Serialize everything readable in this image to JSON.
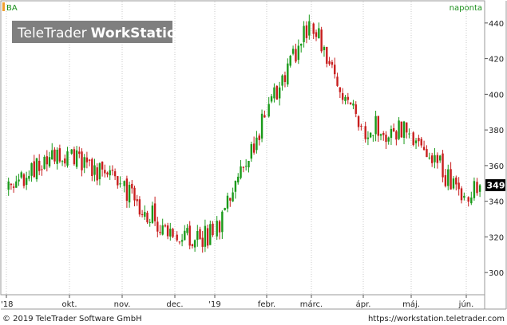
{
  "header": {
    "symbol": "BA",
    "period": "naponta",
    "watermark_light": "TeleTrader",
    "watermark_bold": "WorkStation"
  },
  "footer": {
    "copyright": "© 2019 TeleTrader Software GmbH",
    "url": "https://workstation.teletrader.com"
  },
  "colors": {
    "up": "#1a9a1a",
    "down": "#c81e1e",
    "grid": "#c8c8c8",
    "frame": "#9a9a9a",
    "watermark_bg": "#7f7f7f",
    "symbol_marker": "#f0a030",
    "last_label_bg": "#000000"
  },
  "chart_data": {
    "type": "candlestick",
    "title": "BA",
    "interval": "naponta",
    "ylim": [
      288,
      452
    ],
    "y_ticks": [
      300,
      320,
      340,
      360,
      380,
      400,
      420,
      440
    ],
    "grid": "vertical dotted at month starts",
    "x_tick_labels": [
      "'18",
      "okt.",
      "nov.",
      "dec.",
      "'19",
      "febr.",
      "márc.",
      "ápr.",
      "máj.",
      "jún."
    ],
    "last_value": "349",
    "months": [
      {
        "label": "'18 szept.",
        "open": 347,
        "close": 368
      },
      {
        "label": "okt.",
        "open": 368,
        "close": 350
      },
      {
        "label": "nov.",
        "open": 350,
        "close": 320
      },
      {
        "label": "dec.",
        "open": 320,
        "close": 321
      },
      {
        "label": "'19 jan.",
        "open": 321,
        "close": 387
      },
      {
        "label": "febr.",
        "open": 387,
        "close": 441
      },
      {
        "label": "márc.",
        "open": 441,
        "close": 382
      },
      {
        "label": "ápr.",
        "open": 382,
        "close": 378
      },
      {
        "label": "máj.",
        "open": 378,
        "close": 343
      },
      {
        "label": "jún.",
        "open": 343,
        "close": 349
      }
    ]
  }
}
